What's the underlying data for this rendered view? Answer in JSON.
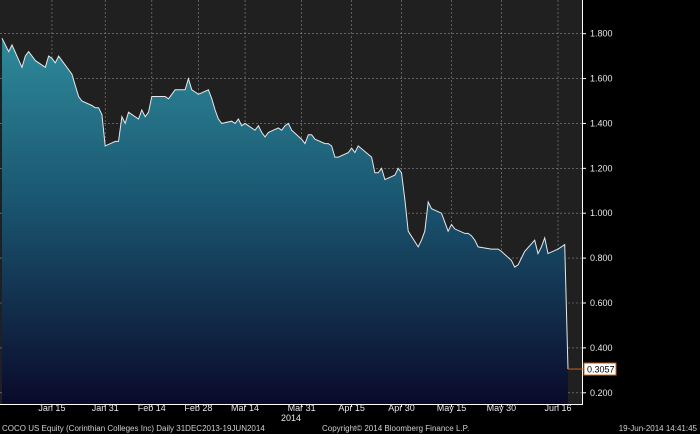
{
  "chart_data": {
    "type": "area",
    "title": "",
    "xlabel": "",
    "ylabel": "",
    "ylim": [
      0.15,
      1.95
    ],
    "grid": true,
    "y_ticks": [
      "1.800",
      "1.600",
      "1.400",
      "1.200",
      "1.000",
      "0.800",
      "0.600",
      "0.400",
      "0.200"
    ],
    "x_ticks": [
      "Jan 15",
      "Jan 31",
      "Feb 14",
      "Feb 28",
      "Mar 14",
      "Mar 31",
      "Apr 15",
      "Apr 30",
      "May 15",
      "May 30",
      "Jun 16"
    ],
    "x_year_label": "2014",
    "last_value_label": "0.3057",
    "colors": {
      "fill_top": "#2e8a9a",
      "fill_bottom": "#0a0a2a",
      "line": "#e8e8e8",
      "last_value_marker": "#c8641e",
      "plot_bg": "#202020"
    },
    "series": [
      {
        "x": [
          "2013-12-31",
          "2014-01-02",
          "2014-01-03",
          "2014-01-06",
          "2014-01-07",
          "2014-01-08",
          "2014-01-09",
          "2014-01-10",
          "2014-01-13",
          "2014-01-14",
          "2014-01-15",
          "2014-01-16",
          "2014-01-17",
          "2014-01-21",
          "2014-01-22",
          "2014-01-23",
          "2014-01-24",
          "2014-01-27",
          "2014-01-28",
          "2014-01-29",
          "2014-01-30",
          "2014-01-31",
          "2014-02-03",
          "2014-02-04",
          "2014-02-05",
          "2014-02-06",
          "2014-02-07",
          "2014-02-10",
          "2014-02-11",
          "2014-02-12",
          "2014-02-13",
          "2014-02-14",
          "2014-02-18",
          "2014-02-19",
          "2014-02-20",
          "2014-02-21",
          "2014-02-24",
          "2014-02-25",
          "2014-02-26",
          "2014-02-27",
          "2014-02-28",
          "2014-03-03",
          "2014-03-04",
          "2014-03-05",
          "2014-03-06",
          "2014-03-07",
          "2014-03-10",
          "2014-03-11",
          "2014-03-12",
          "2014-03-13",
          "2014-03-14",
          "2014-03-17",
          "2014-03-18",
          "2014-03-19",
          "2014-03-20",
          "2014-03-21",
          "2014-03-24",
          "2014-03-25",
          "2014-03-26",
          "2014-03-27",
          "2014-03-28",
          "2014-03-31",
          "2014-04-01",
          "2014-04-02",
          "2014-04-03",
          "2014-04-04",
          "2014-04-07",
          "2014-04-08",
          "2014-04-09",
          "2014-04-10",
          "2014-04-11",
          "2014-04-14",
          "2014-04-15",
          "2014-04-16",
          "2014-04-17",
          "2014-04-21",
          "2014-04-22",
          "2014-04-23",
          "2014-04-24",
          "2014-04-25",
          "2014-04-28",
          "2014-04-29",
          "2014-04-30",
          "2014-05-01",
          "2014-05-02",
          "2014-05-05",
          "2014-05-06",
          "2014-05-07",
          "2014-05-08",
          "2014-05-09",
          "2014-05-12",
          "2014-05-13",
          "2014-05-14",
          "2014-05-15",
          "2014-05-16",
          "2014-05-19",
          "2014-05-20",
          "2014-05-21",
          "2014-05-22",
          "2014-05-23",
          "2014-05-27",
          "2014-05-28",
          "2014-05-29",
          "2014-05-30",
          "2014-06-02",
          "2014-06-03",
          "2014-06-04",
          "2014-06-05",
          "2014-06-06",
          "2014-06-09",
          "2014-06-10",
          "2014-06-11",
          "2014-06-12",
          "2014-06-13",
          "2014-06-16",
          "2014-06-17",
          "2014-06-18",
          "2014-06-19"
        ],
        "values": [
          1.78,
          1.72,
          1.75,
          1.65,
          1.7,
          1.72,
          1.7,
          1.68,
          1.65,
          1.7,
          1.69,
          1.67,
          1.7,
          1.62,
          1.57,
          1.52,
          1.5,
          1.48,
          1.47,
          1.47,
          1.44,
          1.3,
          1.32,
          1.32,
          1.43,
          1.4,
          1.45,
          1.42,
          1.46,
          1.43,
          1.45,
          1.52,
          1.52,
          1.51,
          1.53,
          1.55,
          1.55,
          1.6,
          1.55,
          1.54,
          1.53,
          1.55,
          1.51,
          1.46,
          1.42,
          1.4,
          1.41,
          1.4,
          1.42,
          1.39,
          1.4,
          1.37,
          1.39,
          1.36,
          1.34,
          1.36,
          1.38,
          1.37,
          1.39,
          1.4,
          1.37,
          1.33,
          1.31,
          1.35,
          1.35,
          1.33,
          1.31,
          1.31,
          1.3,
          1.25,
          1.25,
          1.27,
          1.29,
          1.27,
          1.3,
          1.25,
          1.18,
          1.18,
          1.2,
          1.15,
          1.17,
          1.2,
          1.18,
          1.06,
          0.92,
          0.85,
          0.88,
          0.92,
          1.05,
          1.02,
          1.0,
          0.96,
          0.92,
          0.95,
          0.93,
          0.91,
          0.91,
          0.9,
          0.88,
          0.85,
          0.84,
          0.84,
          0.84,
          0.83,
          0.79,
          0.76,
          0.77,
          0.8,
          0.83,
          0.88,
          0.82,
          0.85,
          0.89,
          0.82,
          0.84,
          0.85,
          0.86,
          0.3057
        ]
      }
    ]
  },
  "footer": {
    "left": "COCO US Equity (Corinthian Colleges Inc)  Daily 31DEC2013-19JUN2014",
    "center": "Copyright© 2014 Bloomberg Finance L.P.",
    "right": "19-Jun-2014 14:41:45"
  }
}
